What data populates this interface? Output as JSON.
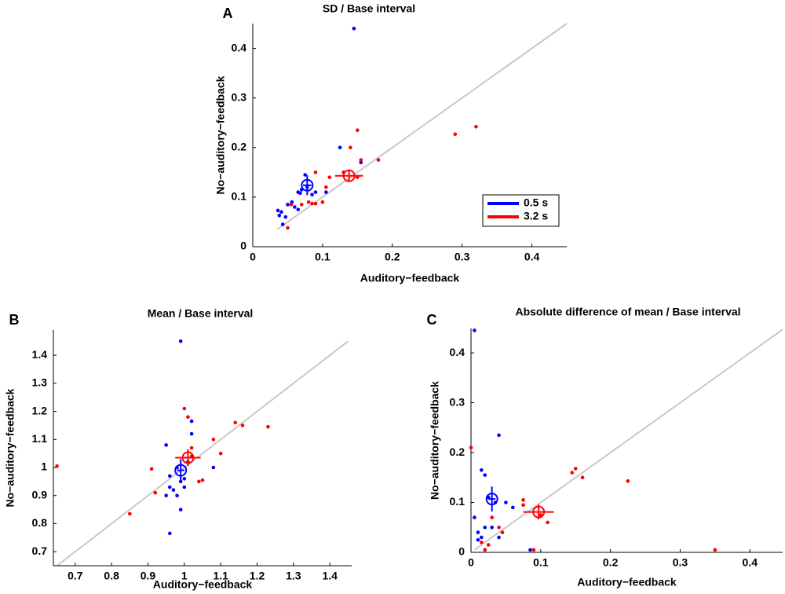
{
  "chart_data": [
    {
      "type": "scatter",
      "panel_label": "A",
      "title": "SD / Base interval",
      "x_label": "Auditory−feedback",
      "y_label": "No−auditory−feedback",
      "xlim": [
        0,
        0.45
      ],
      "ylim": [
        0,
        0.45
      ],
      "xticks": [
        0,
        0.1,
        0.2,
        0.3,
        0.4
      ],
      "yticks": [
        0,
        0.1,
        0.2,
        0.3,
        0.4
      ],
      "identity_line": [
        0.035,
        0.45
      ],
      "line_color": "#c8c8c8",
      "legend": "lower right",
      "series": [
        {
          "name": "0.5 s",
          "color": "#0000ff",
          "x": [
            0.036,
            0.038,
            0.041,
            0.043,
            0.047,
            0.05,
            0.056,
            0.06,
            0.065,
            0.07,
            0.068,
            0.075,
            0.078,
            0.085,
            0.09,
            0.105,
            0.125,
            0.145,
            0.065,
            0.155
          ],
          "values": [
            0.073,
            0.063,
            0.07,
            0.045,
            0.06,
            0.085,
            0.09,
            0.08,
            0.11,
            0.115,
            0.108,
            0.145,
            0.12,
            0.105,
            0.11,
            0.11,
            0.2,
            0.44,
            0.075,
            0.17
          ],
          "mean": {
            "x": 0.078,
            "y": 0.124,
            "xerr": 0.006,
            "yerr": 0.02
          }
        },
        {
          "name": "3.2 s",
          "color": "#ff0000",
          "x": [
            0.05,
            0.055,
            0.07,
            0.08,
            0.085,
            0.09,
            0.09,
            0.1,
            0.105,
            0.11,
            0.13,
            0.14,
            0.15,
            0.155,
            0.15,
            0.18,
            0.29,
            0.32
          ],
          "values": [
            0.038,
            0.085,
            0.085,
            0.09,
            0.087,
            0.087,
            0.15,
            0.09,
            0.12,
            0.14,
            0.15,
            0.2,
            0.235,
            0.175,
            0.14,
            0.175,
            0.227,
            0.242
          ],
          "mean": {
            "x": 0.138,
            "y": 0.143,
            "xerr": 0.02,
            "yerr": 0.012
          }
        }
      ]
    },
    {
      "type": "scatter",
      "panel_label": "B",
      "title": "Mean / Base interval",
      "x_label": "Auditory−feedback",
      "y_label": "No−auditory−feedback",
      "xlim": [
        0.64,
        1.46
      ],
      "ylim": [
        0.65,
        1.49
      ],
      "xticks": [
        0.7,
        0.8,
        0.9,
        1,
        1.1,
        1.2,
        1.3,
        1.4
      ],
      "yticks": [
        0.7,
        0.8,
        0.9,
        1,
        1.1,
        1.2,
        1.3,
        1.4
      ],
      "identity_line": [
        0.65,
        1.45
      ],
      "line_color": "#c8c8c8",
      "series": [
        {
          "color": "#0000ff",
          "x": [
            0.99,
            0.95,
            1.02,
            1.02,
            0.96,
            0.98,
            0.99,
            1.0,
            0.95,
            0.96,
            0.97,
            0.98,
            0.99,
            1.0,
            0.96,
            1.08,
            1.01
          ],
          "values": [
            1.45,
            1.08,
            1.165,
            1.12,
            0.97,
            1.0,
            0.95,
            0.96,
            0.9,
            0.93,
            0.92,
            0.9,
            0.85,
            0.93,
            0.765,
            1.0,
            1.02
          ],
          "mean": {
            "x": 0.99,
            "y": 0.99,
            "xerr": 0.01,
            "yerr": 0.04
          }
        },
        {
          "color": "#ff0000",
          "x": [
            0.65,
            0.85,
            0.92,
            0.91,
            1.0,
            1.01,
            1.02,
            1.04,
            1.05,
            1.08,
            1.1,
            1.14,
            1.16,
            1.23,
            1.02
          ],
          "values": [
            1.005,
            0.835,
            0.91,
            0.995,
            1.21,
            1.18,
            1.07,
            0.95,
            0.955,
            1.1,
            1.05,
            1.16,
            1.15,
            1.145,
            1.04
          ],
          "mean": {
            "x": 1.01,
            "y": 1.035,
            "xerr": 0.035,
            "yerr": 0.03
          }
        }
      ]
    },
    {
      "type": "scatter",
      "panel_label": "C",
      "title": "Absolute difference of mean / Base interval",
      "x_label": "Auditory−feedback",
      "y_label": "No−auditory−feedback",
      "xlim": [
        0,
        0.447
      ],
      "ylim": [
        0,
        0.449
      ],
      "xticks": [
        0,
        0.1,
        0.2,
        0.3,
        0.4
      ],
      "yticks": [
        0,
        0.1,
        0.2,
        0.3,
        0.4
      ],
      "identity_line": [
        0.005,
        0.447
      ],
      "line_color": "#c8c8c8",
      "series": [
        {
          "color": "#0000ff",
          "x": [
            0.005,
            0.04,
            0.015,
            0.02,
            0.025,
            0.035,
            0.05,
            0.06,
            0.005,
            0.01,
            0.015,
            0.02,
            0.03,
            0.04,
            0.01,
            0.02,
            0.085
          ],
          "values": [
            0.445,
            0.235,
            0.165,
            0.155,
            0.11,
            0.1,
            0.1,
            0.09,
            0.07,
            0.04,
            0.03,
            0.05,
            0.05,
            0.03,
            0.025,
            0.005,
            0.005
          ],
          "mean": {
            "x": 0.03,
            "y": 0.107,
            "xerr": 0.005,
            "yerr": 0.025
          }
        },
        {
          "color": "#ff0000",
          "x": [
            0.0,
            0.015,
            0.02,
            0.025,
            0.03,
            0.04,
            0.045,
            0.075,
            0.075,
            0.1,
            0.11,
            0.145,
            0.15,
            0.16,
            0.225,
            0.35,
            0.09
          ],
          "values": [
            0.21,
            0.02,
            0.005,
            0.015,
            0.07,
            0.05,
            0.04,
            0.105,
            0.095,
            0.075,
            0.06,
            0.16,
            0.168,
            0.15,
            0.143,
            0.005,
            0.005
          ],
          "mean": {
            "x": 0.097,
            "y": 0.081,
            "xerr": 0.022,
            "yerr": 0.015
          }
        }
      ]
    }
  ]
}
